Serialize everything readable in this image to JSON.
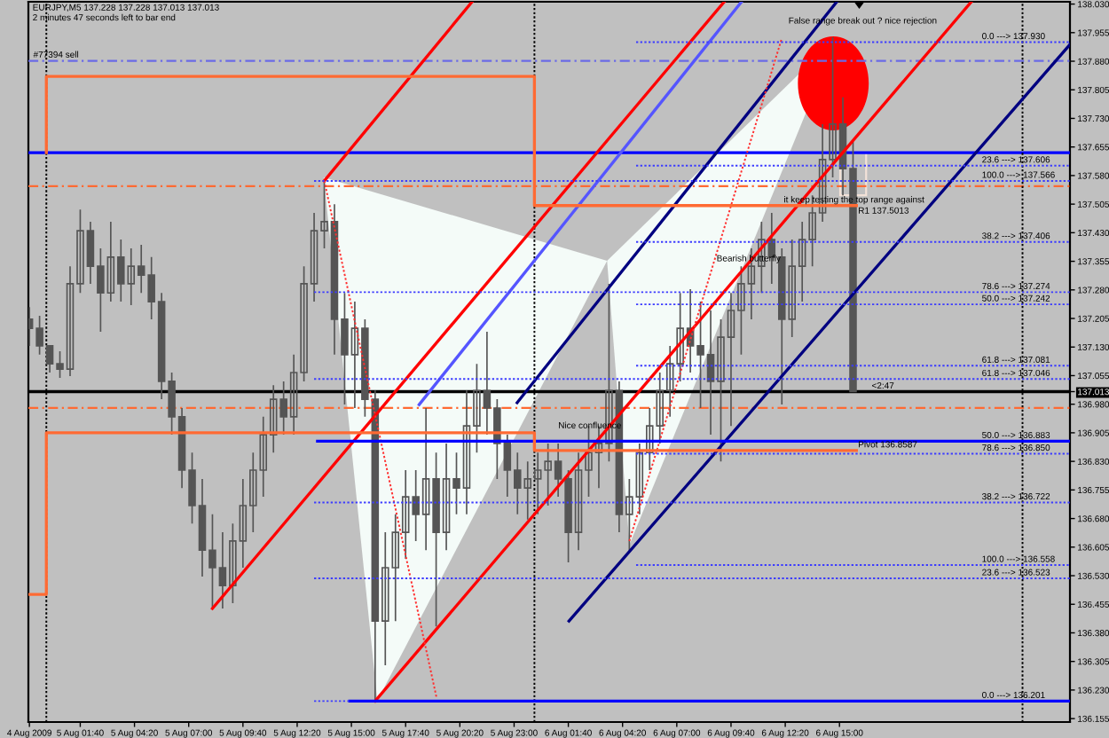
{
  "chart_data": {
    "type": "candlestick",
    "title": "EURJPY,M5 137.228 137.228 137.013 137.013",
    "subtitle": "2 minutes 47 seconds left to bar end",
    "color": "#555555",
    "x": [
      "2009-08-04T23:10",
      "2009-08-04T23:40",
      "2009-08-05T00:10",
      "2009-08-05T00:40",
      "2009-08-05T01:10",
      "2009-08-05T01:40",
      "2009-08-05T02:10",
      "2009-08-05T02:40",
      "2009-08-05T03:10",
      "2009-08-05T03:40",
      "2009-08-05T04:10",
      "2009-08-05T04:40",
      "2009-08-05T05:10",
      "2009-08-05T05:40",
      "2009-08-05T06:10",
      "2009-08-05T06:40",
      "2009-08-05T07:10",
      "2009-08-05T07:40",
      "2009-08-05T08:10",
      "2009-08-05T08:40",
      "2009-08-05T09:10",
      "2009-08-05T09:40",
      "2009-08-05T10:10",
      "2009-08-05T10:40",
      "2009-08-05T11:10",
      "2009-08-05T11:40",
      "2009-08-05T12:10",
      "2009-08-05T12:40",
      "2009-08-05T13:10",
      "2009-08-05T13:40",
      "2009-08-05T14:10",
      "2009-08-05T14:40",
      "2009-08-05T15:10",
      "2009-08-05T15:40",
      "2009-08-05T16:10",
      "2009-08-05T16:40",
      "2009-08-05T17:10",
      "2009-08-05T17:40",
      "2009-08-05T18:10",
      "2009-08-05T18:40",
      "2009-08-05T19:10",
      "2009-08-05T19:40",
      "2009-08-05T20:10",
      "2009-08-05T20:40",
      "2009-08-05T21:10",
      "2009-08-05T21:40",
      "2009-08-05T22:10",
      "2009-08-05T22:40",
      "2009-08-05T23:10",
      "2009-08-05T23:40",
      "2009-08-06T00:10",
      "2009-08-06T00:40",
      "2009-08-06T01:10",
      "2009-08-06T01:40",
      "2009-08-06T02:10",
      "2009-08-06T02:40",
      "2009-08-06T03:10",
      "2009-08-06T03:40",
      "2009-08-06T04:10",
      "2009-08-06T04:40",
      "2009-08-06T05:10",
      "2009-08-06T05:40",
      "2009-08-06T06:10",
      "2009-08-06T06:40",
      "2009-08-06T07:10",
      "2009-08-06T07:40",
      "2009-08-06T08:10",
      "2009-08-06T08:40",
      "2009-08-06T09:10",
      "2009-08-06T09:40",
      "2009-08-06T10:10",
      "2009-08-06T10:40",
      "2009-08-06T11:10",
      "2009-08-06T11:40",
      "2009-08-06T12:10",
      "2009-08-06T12:40",
      "2009-08-06T13:10",
      "2009-08-06T13:40",
      "2009-08-06T14:10",
      "2009-08-06T14:40",
      "2009-08-06T15:10",
      "2009-08-06T15:40"
    ],
    "ohlc": [
      [
        137.203,
        137.235,
        137.133,
        137.179
      ],
      [
        137.179,
        137.212,
        137.11,
        137.133
      ],
      [
        137.133,
        137.133,
        137.063,
        137.086
      ],
      [
        137.086,
        137.119,
        137.049,
        137.072
      ],
      [
        137.072,
        137.342,
        137.054,
        137.296
      ],
      [
        137.296,
        137.491,
        137.272,
        137.435
      ],
      [
        137.435,
        137.459,
        137.296,
        137.342
      ],
      [
        137.342,
        137.389,
        137.17,
        137.272
      ],
      [
        137.272,
        137.459,
        137.249,
        137.366
      ],
      [
        137.366,
        137.412,
        137.249,
        137.296
      ],
      [
        137.296,
        137.389,
        137.24,
        137.342
      ],
      [
        137.342,
        137.398,
        137.272,
        137.319
      ],
      [
        137.319,
        137.366,
        137.203,
        137.249
      ],
      [
        137.249,
        137.272,
        136.993,
        137.04
      ],
      [
        137.04,
        137.063,
        136.9,
        136.947
      ],
      [
        136.947,
        136.97,
        136.76,
        136.807
      ],
      [
        136.807,
        136.853,
        136.667,
        136.714
      ],
      [
        136.714,
        136.784,
        136.528,
        136.597
      ],
      [
        136.597,
        136.691,
        136.444,
        136.551
      ],
      [
        136.551,
        136.644,
        136.444,
        136.504
      ],
      [
        136.504,
        136.667,
        136.458,
        136.621
      ],
      [
        136.621,
        136.784,
        136.551,
        136.714
      ],
      [
        136.714,
        136.853,
        136.644,
        136.807
      ],
      [
        136.807,
        136.947,
        136.737,
        136.9
      ],
      [
        136.9,
        137.03,
        136.853,
        136.993
      ],
      [
        136.993,
        137.04,
        136.9,
        136.947
      ],
      [
        136.947,
        137.11,
        136.9,
        137.063
      ],
      [
        137.063,
        137.342,
        137.04,
        137.296
      ],
      [
        137.296,
        137.482,
        137.249,
        137.435
      ],
      [
        137.435,
        137.566,
        137.389,
        137.459
      ],
      [
        137.459,
        137.505,
        137.11,
        137.203
      ],
      [
        137.203,
        137.272,
        136.979,
        137.11
      ],
      [
        137.11,
        137.249,
        136.97,
        137.179
      ],
      [
        137.179,
        137.203,
        136.947,
        136.993
      ],
      [
        136.993,
        137.016,
        136.201,
        136.411
      ],
      [
        136.411,
        136.644,
        136.295,
        136.551
      ],
      [
        136.551,
        136.691,
        136.411,
        136.644
      ],
      [
        136.644,
        136.807,
        136.574,
        136.737
      ],
      [
        136.737,
        136.807,
        136.621,
        136.691
      ],
      [
        136.691,
        136.97,
        136.597,
        136.784
      ],
      [
        136.784,
        136.853,
        136.397,
        136.644
      ],
      [
        136.644,
        136.877,
        136.597,
        136.784
      ],
      [
        136.784,
        136.853,
        136.691,
        136.76
      ],
      [
        136.76,
        137.016,
        136.691,
        136.923
      ],
      [
        136.923,
        137.086,
        136.853,
        137.016
      ],
      [
        137.016,
        137.17,
        136.9,
        136.97
      ],
      [
        136.97,
        136.993,
        136.784,
        136.877
      ],
      [
        136.877,
        136.9,
        136.737,
        136.807
      ],
      [
        136.807,
        136.853,
        136.691,
        136.76
      ],
      [
        136.76,
        136.83,
        136.677,
        136.784
      ],
      [
        136.784,
        136.853,
        136.691,
        136.807
      ],
      [
        136.807,
        136.877,
        136.714,
        136.83
      ],
      [
        136.83,
        136.877,
        136.737,
        136.784
      ],
      [
        136.784,
        136.807,
        136.565,
        136.644
      ],
      [
        136.644,
        136.853,
        136.597,
        136.807
      ],
      [
        136.807,
        136.923,
        136.737,
        136.853
      ],
      [
        136.853,
        136.923,
        136.76,
        136.877
      ],
      [
        136.877,
        137.296,
        136.83,
        137.016
      ],
      [
        137.016,
        137.04,
        136.644,
        136.691
      ],
      [
        136.691,
        136.784,
        136.597,
        136.737
      ],
      [
        136.737,
        136.877,
        136.691,
        136.853
      ],
      [
        136.853,
        136.97,
        136.807,
        136.923
      ],
      [
        136.923,
        137.063,
        136.877,
        137.016
      ],
      [
        137.016,
        137.133,
        136.947,
        137.086
      ],
      [
        137.086,
        137.272,
        137.04,
        137.179
      ],
      [
        137.179,
        137.282,
        137.063,
        137.133
      ],
      [
        137.133,
        137.249,
        136.97,
        137.11
      ],
      [
        137.11,
        137.226,
        136.9,
        137.04
      ],
      [
        137.04,
        137.203,
        136.83,
        137.156
      ],
      [
        137.156,
        137.272,
        136.923,
        137.226
      ],
      [
        137.226,
        137.342,
        137.11,
        137.296
      ],
      [
        137.296,
        137.389,
        137.203,
        137.342
      ],
      [
        137.342,
        137.459,
        137.272,
        137.412
      ],
      [
        137.412,
        137.482,
        137.296,
        137.366
      ],
      [
        137.366,
        137.389,
        136.979,
        137.203
      ],
      [
        137.203,
        137.412,
        137.156,
        137.342
      ],
      [
        137.342,
        137.459,
        137.249,
        137.412
      ],
      [
        137.412,
        137.528,
        137.342,
        137.482
      ],
      [
        137.482,
        137.715,
        137.459,
        137.622
      ],
      [
        137.622,
        137.943,
        137.575,
        137.715
      ],
      [
        137.715,
        137.785,
        137.528,
        137.598
      ],
      [
        137.598,
        137.668,
        137.013,
        137.013
      ]
    ],
    "series": [
      {
        "type": "line",
        "x": [
          "2009-08-05T13:40",
          "2009-08-05T20:56"
        ],
        "values": [
          137.566,
          138.036
        ],
        "color": "#ff0000",
        "line_style": "solid"
      },
      {
        "type": "line",
        "x": [
          "2009-08-05T08:10",
          "2009-08-06T09:20"
        ],
        "values": [
          136.444,
          138.036
        ],
        "color": "#ff0000",
        "line_style": "solid"
      },
      {
        "type": "line",
        "x": [
          "2009-08-05T16:10",
          "2009-08-06T21:29"
        ],
        "values": [
          136.201,
          138.036
        ],
        "color": "#ff0000",
        "line_style": "solid"
      },
      {
        "type": "line",
        "x": [
          "2009-08-05T23:09",
          "2009-08-06T14:52"
        ],
        "values": [
          136.984,
          138.036
        ],
        "color": "#000080",
        "line_style": "solid"
      },
      {
        "type": "line",
        "x": [
          "2009-08-06T01:42",
          "2009-08-07T02:20"
        ],
        "values": [
          136.411,
          137.924
        ],
        "color": "#000080",
        "line_style": "solid"
      },
      {
        "type": "line",
        "x": [
          "2009-08-05T18:20",
          "2009-08-06T10:11"
        ],
        "values": [
          136.979,
          138.036
        ],
        "color": "#5555ff",
        "line_style": "solid"
      },
      {
        "type": "line",
        "x": [
          "2009-08-05T13:40",
          "2009-08-05T19:11"
        ],
        "values": [
          137.566,
          136.211
        ],
        "color": "#ff3030",
        "line_style": "dotted"
      },
      {
        "type": "line",
        "x": [
          "2009-08-06T04:40",
          "2009-08-06T12:09"
        ],
        "values": [
          136.621,
          137.938
        ],
        "color": "#ff3030",
        "line_style": "dotted"
      },
      {
        "type": "line",
        "x": [
          "2009-08-05T13:20",
          "2009-08-07T02:20"
        ],
        "values": [
          136.883,
          136.883
        ],
        "color": "#0000ff",
        "line_style": "solid"
      },
      {
        "type": "line",
        "x": [
          "2009-08-05T14:55",
          "2009-08-07T02:20"
        ],
        "values": [
          136.201,
          136.201
        ],
        "color": "#0000ff",
        "line_style": "solid"
      },
      {
        "type": "line",
        "x": [
          "2009-08-05T13:10",
          "2009-08-07T02:20"
        ],
        "values": [
          137.566,
          137.566
        ],
        "color": "#3c3cff",
        "line_style": "dotted"
      },
      {
        "type": "line",
        "x": [
          "2009-08-05T13:10",
          "2009-08-07T02:20"
        ],
        "values": [
          137.274,
          137.274
        ],
        "color": "#3c3cff",
        "line_style": "dotted"
      },
      {
        "type": "line",
        "x": [
          "2009-08-05T13:10",
          "2009-08-07T02:20"
        ],
        "values": [
          137.046,
          137.046
        ],
        "color": "#3c3cff",
        "line_style": "dotted"
      },
      {
        "type": "line",
        "x": [
          "2009-08-05T13:10",
          "2009-08-07T02:20"
        ],
        "values": [
          136.722,
          136.722
        ],
        "color": "#3c3cff",
        "line_style": "dotted"
      },
      {
        "type": "line",
        "x": [
          "2009-08-05T13:10",
          "2009-08-07T02:20"
        ],
        "values": [
          136.523,
          136.523
        ],
        "color": "#3c3cff",
        "line_style": "dotted"
      },
      {
        "type": "line",
        "x": [
          "2009-08-05T13:10",
          "2009-08-05T14:55"
        ],
        "values": [
          136.201,
          136.201
        ],
        "color": "#3c3cff",
        "line_style": "dotted"
      },
      {
        "type": "line",
        "x": [
          "2009-08-06T05:00",
          "2009-08-07T02:20"
        ],
        "values": [
          137.93,
          137.93
        ],
        "color": "#3c3cff",
        "line_style": "dotted"
      },
      {
        "type": "line",
        "x": [
          "2009-08-06T05:00",
          "2009-08-07T02:20"
        ],
        "values": [
          137.606,
          137.606
        ],
        "color": "#3c3cff",
        "line_style": "dotted"
      },
      {
        "type": "line",
        "x": [
          "2009-08-06T05:00",
          "2009-08-07T02:20"
        ],
        "values": [
          137.406,
          137.406
        ],
        "color": "#3c3cff",
        "line_style": "dotted"
      },
      {
        "type": "line",
        "x": [
          "2009-08-06T05:00",
          "2009-08-07T02:20"
        ],
        "values": [
          137.242,
          137.242
        ],
        "color": "#3c3cff",
        "line_style": "dotted"
      },
      {
        "type": "line",
        "x": [
          "2009-08-06T05:00",
          "2009-08-07T02:20"
        ],
        "values": [
          137.081,
          137.081
        ],
        "color": "#3c3cff",
        "line_style": "dotted"
      },
      {
        "type": "line",
        "x": [
          "2009-08-06T05:00",
          "2009-08-07T02:20"
        ],
        "values": [
          136.85,
          136.85
        ],
        "color": "#3c3cff",
        "line_style": "dotted"
      },
      {
        "type": "line",
        "x": [
          "2009-08-06T05:00",
          "2009-08-07T02:20"
        ],
        "values": [
          136.558,
          136.558
        ],
        "color": "#3c3cff",
        "line_style": "dotted"
      },
      {
        "type": "line",
        "x": [
          "2009-08-05T00:00",
          "2009-08-05T00:00",
          "2009-08-06T00:00",
          "2009-08-06T00:00",
          "2009-08-06T15:50"
        ],
        "values": [
          137.64,
          137.84,
          137.84,
          137.5013,
          137.5013
        ],
        "color": "#ff6a33",
        "line_style": "solid"
      },
      {
        "type": "line",
        "x": [
          "2009-08-04T23:07",
          "2009-08-05T00:00",
          "2009-08-05T00:00",
          "2009-08-06T00:00",
          "2009-08-06T00:00",
          "2009-08-06T15:50"
        ],
        "values": [
          136.481,
          136.481,
          136.905,
          136.905,
          136.8587,
          136.8587
        ],
        "color": "#ff6a33",
        "line_style": "solid"
      }
    ],
    "ref_lines": [
      {
        "axis": "y",
        "value": 137.881,
        "label": "#77394 sell",
        "color": "#6a6ae6",
        "line_style": "dashed"
      },
      {
        "axis": "y",
        "value": 137.64,
        "color": "#0000ff",
        "line_style": "solid"
      },
      {
        "axis": "y",
        "value": 137.552,
        "color": "#ff6a33",
        "line_style": "dashed"
      },
      {
        "axis": "y",
        "value": 136.97,
        "color": "#ff6a33",
        "line_style": "dashed"
      },
      {
        "axis": "y",
        "value": 137.013,
        "color": "#000000",
        "line_style": "solid"
      },
      {
        "axis": "x",
        "value": "2009-08-05T00:00",
        "color": "#000000",
        "line_style": "dotted"
      },
      {
        "axis": "x",
        "value": "2009-08-06T00:00",
        "color": "#000000",
        "line_style": "dotted"
      },
      {
        "axis": "x",
        "value": "2009-08-07T00:00",
        "color": "#000000",
        "line_style": "dotted"
      }
    ],
    "annotations": [
      "False range break out ? nice rejection",
      "it keep testing the top range against",
      "Bearish butterfly",
      "Nice confluence",
      {
        "text": "R1 137.5013",
        "x": "2009-08-06T15:55",
        "y": 137.5013
      },
      {
        "text": "Pivot 136.8587",
        "x": "2009-08-06T15:55",
        "y": 136.8587
      },
      {
        "text": "<2:47",
        "x": "2009-08-06T16:35",
        "y": 137.013
      },
      {
        "text": "0.0 ---> 137.930",
        "x": "2009-08-06T22:00",
        "y": 137.93
      },
      {
        "text": "23.6 ---> 137.606",
        "x": "2009-08-06T22:00",
        "y": 137.606
      },
      {
        "text": "38.2 ---> 137.406",
        "x": "2009-08-06T22:00",
        "y": 137.406
      },
      {
        "text": "50.0 ---> 137.242",
        "x": "2009-08-06T22:00",
        "y": 137.242
      },
      {
        "text": "61.8 ---> 137.081",
        "x": "2009-08-06T22:00",
        "y": 137.081
      },
      {
        "text": "78.6 ---> 136.850",
        "x": "2009-08-06T22:00",
        "y": 136.85
      },
      {
        "text": "100.0 ---> 136.558",
        "x": "2009-08-06T22:00",
        "y": 136.558
      },
      {
        "text": "100.0 ---> 137.566",
        "x": "2009-08-06T22:00",
        "y": 137.566
      },
      {
        "text": "78.6 ---> 137.274",
        "x": "2009-08-06T22:00",
        "y": 137.274
      },
      {
        "text": "61.8 ---> 137.046",
        "x": "2009-08-06T22:00",
        "y": 137.046
      },
      {
        "text": "50.0 ---> 136.883",
        "x": "2009-08-06T22:00",
        "y": 136.883
      },
      {
        "text": "38.2 ---> 136.722",
        "x": "2009-08-06T22:00",
        "y": 136.722
      },
      {
        "text": "23.6 ---> 136.523",
        "x": "2009-08-06T22:00",
        "y": 136.523
      },
      {
        "text": "0.0 ---> 136.201",
        "x": "2009-08-06T22:00",
        "y": 136.201
      }
    ],
    "xlim": [
      "2009-08-04T23:07",
      "2009-08-07T02:20"
    ],
    "xticks": [
      {
        "value": "2009-08-04T23:10",
        "label": "4 Aug 2009"
      },
      {
        "value": "2009-08-05T01:40",
        "label": "5 Aug 01:40"
      },
      {
        "value": "2009-08-05T04:20",
        "label": "5 Aug 04:20"
      },
      {
        "value": "2009-08-05T07:00",
        "label": "5 Aug 07:00"
      },
      {
        "value": "2009-08-05T09:40",
        "label": "5 Aug 09:40"
      },
      {
        "value": "2009-08-05T12:20",
        "label": "5 Aug 12:20"
      },
      {
        "value": "2009-08-05T15:00",
        "label": "5 Aug 15:00"
      },
      {
        "value": "2009-08-05T17:40",
        "label": "5 Aug 17:40"
      },
      {
        "value": "2009-08-05T20:20",
        "label": "5 Aug 20:20"
      },
      {
        "value": "2009-08-05T23:00",
        "label": "5 Aug 23:00"
      },
      {
        "value": "2009-08-06T01:40",
        "label": "6 Aug 01:40"
      },
      {
        "value": "2009-08-06T04:20",
        "label": "6 Aug 04:20"
      },
      {
        "value": "2009-08-06T07:00",
        "label": "6 Aug 07:00"
      },
      {
        "value": "2009-08-06T09:40",
        "label": "6 Aug 09:40"
      },
      {
        "value": "2009-08-06T12:20",
        "label": "6 Aug 12:20"
      },
      {
        "value": "2009-08-06T15:00",
        "label": "6 Aug 15:00"
      }
    ],
    "ylim": [
      136.146,
      138.036
    ],
    "yticks": [
      136.155,
      {
        "value": 136.23,
        "label": "136.230"
      },
      136.305,
      {
        "value": 136.38,
        "label": "136.380"
      },
      136.455,
      {
        "value": 136.53,
        "label": "136.530"
      },
      136.605,
      {
        "value": 136.68,
        "label": "136.680"
      },
      136.755,
      {
        "value": 136.83,
        "label": "136.830"
      },
      136.905,
      {
        "value": 136.98,
        "label": "136.980"
      },
      137.013,
      137.055,
      {
        "value": 137.13,
        "label": "137.130"
      },
      137.205,
      {
        "value": 137.28,
        "label": "137.280"
      },
      137.355,
      {
        "value": 137.43,
        "label": "137.430"
      },
      137.505,
      {
        "value": 137.58,
        "label": "137.580"
      },
      137.655,
      {
        "value": 137.73,
        "label": "137.730"
      },
      137.805,
      {
        "value": 137.88,
        "label": "137.880"
      },
      137.955,
      {
        "value": 138.03,
        "label": "138.030"
      }
    ]
  }
}
